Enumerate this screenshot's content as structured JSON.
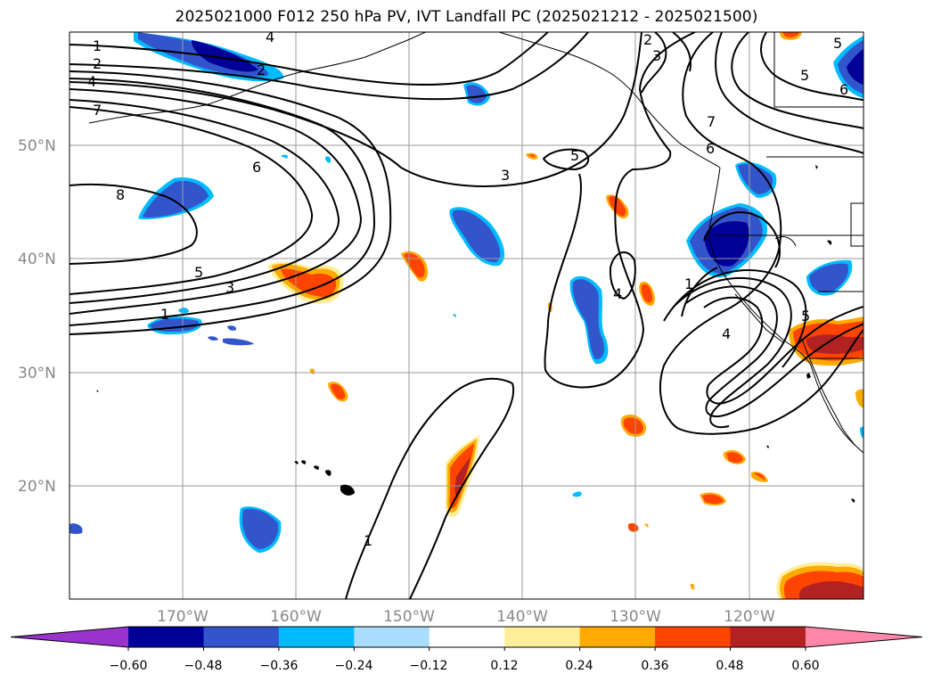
{
  "title": "2025021000 F012 250 hPa PV, IVT Landfall PC (2025021212 - 2025021500)",
  "map": {
    "lat_labels": [
      "50°N",
      "40°N",
      "30°N",
      "20°N"
    ],
    "lon_labels": [
      "170°W",
      "160°W",
      "150°W",
      "140°W",
      "130°W",
      "120°W"
    ],
    "contour_labels": [
      "1",
      "2",
      "4",
      "7",
      "8",
      "6",
      "5",
      "3",
      "1",
      "2",
      "4",
      "2",
      "3",
      "7",
      "6",
      "5",
      "3",
      "5",
      "4",
      "1",
      "4",
      "5",
      "1",
      "6",
      "5"
    ]
  },
  "colorbar": {
    "colors": [
      "#9933cc",
      "#000099",
      "#3355cc",
      "#00bbff",
      "#aaddff",
      "#ffffff",
      "#ffee99",
      "#ffaa00",
      "#ff4400",
      "#b22222",
      "#ff88aa"
    ],
    "tick_labels": [
      "−0.60",
      "−0.48",
      "−0.36",
      "−0.24",
      "−0.12",
      "0.12",
      "0.24",
      "0.36",
      "0.48",
      "0.60"
    ]
  }
}
